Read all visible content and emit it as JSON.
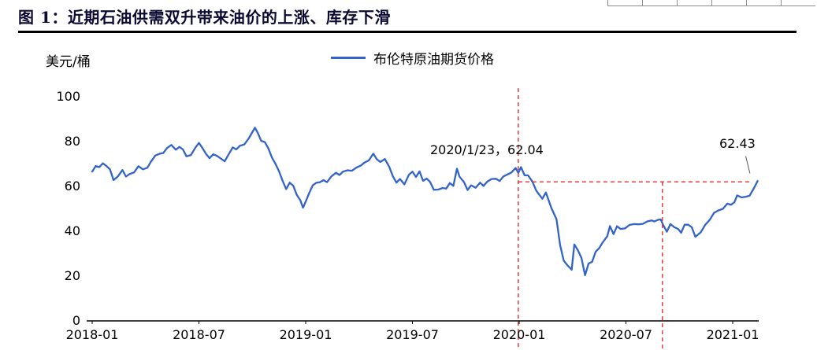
{
  "figure": {
    "title": "图 1：近期石油供需双升带来油价的上涨、库存下滑"
  },
  "chart_data": {
    "type": "line",
    "title": "图 1：近期石油供需双升带来油价的上涨、库存下滑",
    "xlabel": "",
    "ylabel": "美元/桶",
    "ylim": [
      0,
      100
    ],
    "y_ticks": [
      0,
      20,
      40,
      60,
      80,
      100
    ],
    "x_ticks": [
      {
        "label": "2018-01",
        "t": 0
      },
      {
        "label": "2018-07",
        "t": 6
      },
      {
        "label": "2019-01",
        "t": 12
      },
      {
        "label": "2019-07",
        "t": 18
      },
      {
        "label": "2020-01",
        "t": 24
      },
      {
        "label": "2020-07",
        "t": 30
      },
      {
        "label": "2021-01",
        "t": 36
      }
    ],
    "grid": false,
    "legend_position": "top-center",
    "line_color": "#3263c8",
    "reference_color": "#e42d2d",
    "series": [
      {
        "name": "布伦特原油期货价格",
        "color": "#3263c8",
        "points": [
          [
            0,
            66.6
          ],
          [
            0.2,
            69.1
          ],
          [
            0.4,
            68.6
          ],
          [
            0.6,
            70.3
          ],
          [
            0.8,
            69.1
          ],
          [
            1,
            67.6
          ],
          [
            1.2,
            62.8
          ],
          [
            1.45,
            64.5
          ],
          [
            1.7,
            67.3
          ],
          [
            1.9,
            64.4
          ],
          [
            2.1,
            65.5
          ],
          [
            2.35,
            66.2
          ],
          [
            2.6,
            69
          ],
          [
            2.85,
            67.6
          ],
          [
            3.1,
            68.3
          ],
          [
            3.3,
            71
          ],
          [
            3.55,
            73.8
          ],
          [
            3.8,
            74.6
          ],
          [
            4,
            74.9
          ],
          [
            4.2,
            77.1
          ],
          [
            4.45,
            78.5
          ],
          [
            4.7,
            76.4
          ],
          [
            4.9,
            77.6
          ],
          [
            5.1,
            76.5
          ],
          [
            5.3,
            73.4
          ],
          [
            5.55,
            74
          ],
          [
            5.8,
            77.3
          ],
          [
            6,
            79.4
          ],
          [
            6.2,
            77.1
          ],
          [
            6.4,
            74.5
          ],
          [
            6.6,
            72.6
          ],
          [
            6.8,
            74.3
          ],
          [
            7,
            73.7
          ],
          [
            7.2,
            72.6
          ],
          [
            7.45,
            71.2
          ],
          [
            7.7,
            74.7
          ],
          [
            7.9,
            77.4
          ],
          [
            8.1,
            76.5
          ],
          [
            8.3,
            78.1
          ],
          [
            8.55,
            78.7
          ],
          [
            8.8,
            81.4
          ],
          [
            9,
            84.2
          ],
          [
            9.15,
            86.2
          ],
          [
            9.3,
            84
          ],
          [
            9.5,
            80.3
          ],
          [
            9.7,
            79.8
          ],
          [
            9.9,
            77
          ],
          [
            10.1,
            72.9
          ],
          [
            10.3,
            70.1
          ],
          [
            10.5,
            66.8
          ],
          [
            10.7,
            62.6
          ],
          [
            10.9,
            58.8
          ],
          [
            11.1,
            61.7
          ],
          [
            11.3,
            60.3
          ],
          [
            11.5,
            56.2
          ],
          [
            11.7,
            53.8
          ],
          [
            11.85,
            50.5
          ],
          [
            12,
            53.2
          ],
          [
            12.2,
            57.1
          ],
          [
            12.4,
            60.5
          ],
          [
            12.6,
            61.6
          ],
          [
            12.8,
            61.9
          ],
          [
            13,
            62.8
          ],
          [
            13.2,
            61.9
          ],
          [
            13.45,
            64.5
          ],
          [
            13.7,
            66.1
          ],
          [
            13.9,
            65.1
          ],
          [
            14.1,
            66.6
          ],
          [
            14.35,
            67.2
          ],
          [
            14.6,
            67
          ],
          [
            14.85,
            68.4
          ],
          [
            15.1,
            69.3
          ],
          [
            15.3,
            70.6
          ],
          [
            15.55,
            71.6
          ],
          [
            15.8,
            74.6
          ],
          [
            16,
            72.1
          ],
          [
            16.2,
            70.9
          ],
          [
            16.45,
            72.2
          ],
          [
            16.7,
            68.7
          ],
          [
            16.9,
            64.5
          ],
          [
            17.1,
            61.7
          ],
          [
            17.3,
            63.3
          ],
          [
            17.55,
            60.9
          ],
          [
            17.8,
            65.2
          ],
          [
            18,
            66.6
          ],
          [
            18.2,
            64.2
          ],
          [
            18.4,
            66.7
          ],
          [
            18.6,
            62.5
          ],
          [
            18.8,
            63.5
          ],
          [
            19,
            61.9
          ],
          [
            19.2,
            58.5
          ],
          [
            19.45,
            58.6
          ],
          [
            19.7,
            59.3
          ],
          [
            19.9,
            59
          ],
          [
            20.1,
            61.5
          ],
          [
            20.3,
            60.2
          ],
          [
            20.5,
            67.9
          ],
          [
            20.65,
            64.3
          ],
          [
            20.9,
            61.9
          ],
          [
            21.1,
            58.4
          ],
          [
            21.3,
            60.5
          ],
          [
            21.55,
            59.4
          ],
          [
            21.8,
            61.7
          ],
          [
            22,
            60.2
          ],
          [
            22.2,
            62.1
          ],
          [
            22.45,
            63.3
          ],
          [
            22.7,
            63.4
          ],
          [
            22.9,
            62.4
          ],
          [
            23.1,
            64.4
          ],
          [
            23.3,
            65.2
          ],
          [
            23.55,
            66.1
          ],
          [
            23.8,
            68.2
          ],
          [
            23.95,
            66
          ],
          [
            24.1,
            68.6
          ],
          [
            24.3,
            65
          ],
          [
            24.5,
            64.9
          ],
          [
            24.75,
            62.04
          ],
          [
            24.95,
            58.2
          ],
          [
            25.1,
            56.6
          ],
          [
            25.3,
            54.5
          ],
          [
            25.5,
            57.3
          ],
          [
            25.8,
            50.5
          ],
          [
            26.1,
            45.3
          ],
          [
            26.3,
            33.9
          ],
          [
            26.5,
            26.9
          ],
          [
            26.7,
            24.9
          ],
          [
            26.95,
            22.8
          ],
          [
            27.1,
            34.1
          ],
          [
            27.3,
            31.5
          ],
          [
            27.5,
            28.1
          ],
          [
            27.7,
            20.4
          ],
          [
            27.9,
            25.6
          ],
          [
            28.1,
            26.4
          ],
          [
            28.3,
            30.9
          ],
          [
            28.5,
            32.5
          ],
          [
            28.7,
            35.1
          ],
          [
            28.95,
            37.8
          ],
          [
            29.1,
            42.3
          ],
          [
            29.3,
            38.7
          ],
          [
            29.5,
            42.2
          ],
          [
            29.7,
            41
          ],
          [
            29.95,
            41.3
          ],
          [
            30.2,
            42.8
          ],
          [
            30.45,
            43.2
          ],
          [
            30.7,
            43.1
          ],
          [
            30.95,
            43.3
          ],
          [
            31.2,
            44.4
          ],
          [
            31.45,
            44.8
          ],
          [
            31.6,
            44.4
          ],
          [
            31.8,
            45.1
          ],
          [
            31.95,
            45.3
          ],
          [
            32.1,
            42.7
          ],
          [
            32.3,
            39.8
          ],
          [
            32.5,
            43.2
          ],
          [
            32.7,
            41.9
          ],
          [
            32.95,
            40.9
          ],
          [
            33.1,
            39.3
          ],
          [
            33.3,
            42.9
          ],
          [
            33.5,
            42.9
          ],
          [
            33.7,
            41.8
          ],
          [
            33.9,
            37.5
          ],
          [
            34.2,
            39.5
          ],
          [
            34.45,
            42.8
          ],
          [
            34.7,
            45
          ],
          [
            34.95,
            48.2
          ],
          [
            35.2,
            49.3
          ],
          [
            35.45,
            50
          ],
          [
            35.7,
            52.3
          ],
          [
            35.9,
            51.8
          ],
          [
            36.1,
            53
          ],
          [
            36.25,
            56
          ],
          [
            36.5,
            55.1
          ],
          [
            36.75,
            55.4
          ],
          [
            36.95,
            55.9
          ],
          [
            37.2,
            59.3
          ],
          [
            37.4,
            62.43
          ]
        ]
      }
    ],
    "annotations": [
      {
        "text": "2020/1/23，62.04",
        "t": 24.75,
        "v": 62.04
      },
      {
        "text": "62.43",
        "t": 37.4,
        "v": 62.43,
        "leader": [
          36.73,
          73.5,
          36.97,
          65.8
        ]
      }
    ],
    "reference_lines": [
      {
        "orientation": "vertical",
        "t": 23.95,
        "v_range": [
          -13,
          103.8
        ]
      },
      {
        "orientation": "vertical",
        "t": 32.05,
        "v_range": [
          -13,
          62.04
        ]
      },
      {
        "orientation": "horizontal",
        "v": 62.04,
        "t_range": [
          23.95,
          36.93
        ]
      }
    ]
  }
}
